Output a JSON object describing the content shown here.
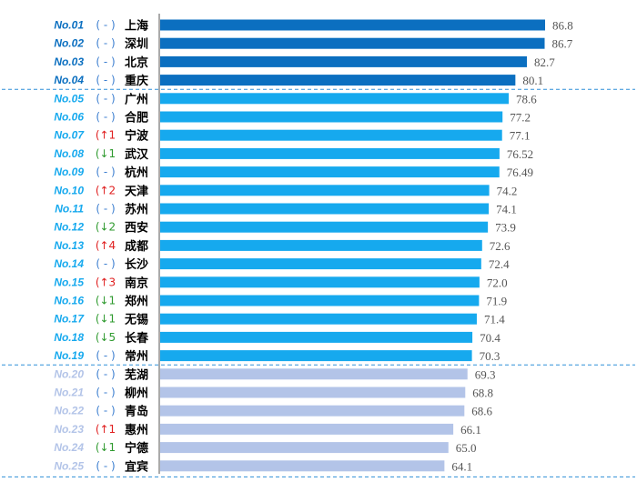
{
  "chart_data": {
    "type": "bar",
    "orientation": "horizontal",
    "xlim": [
      0,
      100
    ],
    "rows": [
      {
        "rank": "No.01",
        "change": "-",
        "dir": "none",
        "city": "上海",
        "value": 86.8,
        "value_label": "86.8",
        "tier": 1
      },
      {
        "rank": "No.02",
        "change": "-",
        "dir": "none",
        "city": "深圳",
        "value": 86.7,
        "value_label": "86.7",
        "tier": 1
      },
      {
        "rank": "No.03",
        "change": "-",
        "dir": "none",
        "city": "北京",
        "value": 82.7,
        "value_label": "82.7",
        "tier": 1
      },
      {
        "rank": "No.04",
        "change": "-",
        "dir": "none",
        "city": "重庆",
        "value": 80.1,
        "value_label": "80.1",
        "tier": 1
      },
      {
        "rank": "No.05",
        "change": "-",
        "dir": "none",
        "city": "广州",
        "value": 78.6,
        "value_label": "78.6",
        "tier": 2
      },
      {
        "rank": "No.06",
        "change": "-",
        "dir": "none",
        "city": "合肥",
        "value": 77.2,
        "value_label": "77.2",
        "tier": 2
      },
      {
        "rank": "No.07",
        "change": "↑1",
        "dir": "up",
        "city": "宁波",
        "value": 77.1,
        "value_label": "77.1",
        "tier": 2
      },
      {
        "rank": "No.08",
        "change": "↓1",
        "dir": "down",
        "city": "武汉",
        "value": 76.52,
        "value_label": "76.52",
        "tier": 2
      },
      {
        "rank": "No.09",
        "change": "-",
        "dir": "none",
        "city": "杭州",
        "value": 76.49,
        "value_label": "76.49",
        "tier": 2
      },
      {
        "rank": "No.10",
        "change": "↑2",
        "dir": "up",
        "city": "天津",
        "value": 74.2,
        "value_label": "74.2",
        "tier": 2
      },
      {
        "rank": "No.11",
        "change": "-",
        "dir": "none",
        "city": "苏州",
        "value": 74.1,
        "value_label": "74.1",
        "tier": 2
      },
      {
        "rank": "No.12",
        "change": "↓2",
        "dir": "down",
        "city": "西安",
        "value": 73.9,
        "value_label": "73.9",
        "tier": 2
      },
      {
        "rank": "No.13",
        "change": "↑4",
        "dir": "up",
        "city": "成都",
        "value": 72.6,
        "value_label": "72.6",
        "tier": 2
      },
      {
        "rank": "No.14",
        "change": "-",
        "dir": "none",
        "city": "长沙",
        "value": 72.4,
        "value_label": "72.4",
        "tier": 2
      },
      {
        "rank": "No.15",
        "change": "↑3",
        "dir": "up",
        "city": "南京",
        "value": 72.0,
        "value_label": "72.0",
        "tier": 2
      },
      {
        "rank": "No.16",
        "change": "↓1",
        "dir": "down",
        "city": "郑州",
        "value": 71.9,
        "value_label": "71.9",
        "tier": 2
      },
      {
        "rank": "No.17",
        "change": "↓1",
        "dir": "down",
        "city": "无锡",
        "value": 71.4,
        "value_label": "71.4",
        "tier": 2
      },
      {
        "rank": "No.18",
        "change": "↓5",
        "dir": "down",
        "city": "长春",
        "value": 70.4,
        "value_label": "70.4",
        "tier": 2
      },
      {
        "rank": "No.19",
        "change": "-",
        "dir": "none",
        "city": "常州",
        "value": 70.3,
        "value_label": "70.3",
        "tier": 2
      },
      {
        "rank": "No.20",
        "change": "-",
        "dir": "none",
        "city": "芜湖",
        "value": 69.3,
        "value_label": "69.3",
        "tier": 3
      },
      {
        "rank": "No.21",
        "change": "-",
        "dir": "none",
        "city": "柳州",
        "value": 68.8,
        "value_label": "68.8",
        "tier": 3
      },
      {
        "rank": "No.22",
        "change": "-",
        "dir": "none",
        "city": "青岛",
        "value": 68.6,
        "value_label": "68.6",
        "tier": 3
      },
      {
        "rank": "No.23",
        "change": "↑1",
        "dir": "up",
        "city": "惠州",
        "value": 66.1,
        "value_label": "66.1",
        "tier": 3
      },
      {
        "rank": "No.24",
        "change": "↓1",
        "dir": "down",
        "city": "宁德",
        "value": 65.0,
        "value_label": "65.0",
        "tier": 3
      },
      {
        "rank": "No.25",
        "change": "-",
        "dir": "none",
        "city": "宜宾",
        "value": 64.1,
        "value_label": "64.1",
        "tier": 3
      }
    ]
  },
  "colors": {
    "tier1_bar": "#0b6fc0",
    "tier2_bar": "#16a9ee",
    "tier3_bar": "#b3c4e8",
    "tier1_rank": "#0b6fc0",
    "tier2_rank": "#16a9ee",
    "tier3_rank": "#b3c4e8",
    "up": "#e02020",
    "down": "#2e9a2e",
    "neutral": "#3d7fd0",
    "separator": "#2f8fd8",
    "axis": "#555555"
  }
}
